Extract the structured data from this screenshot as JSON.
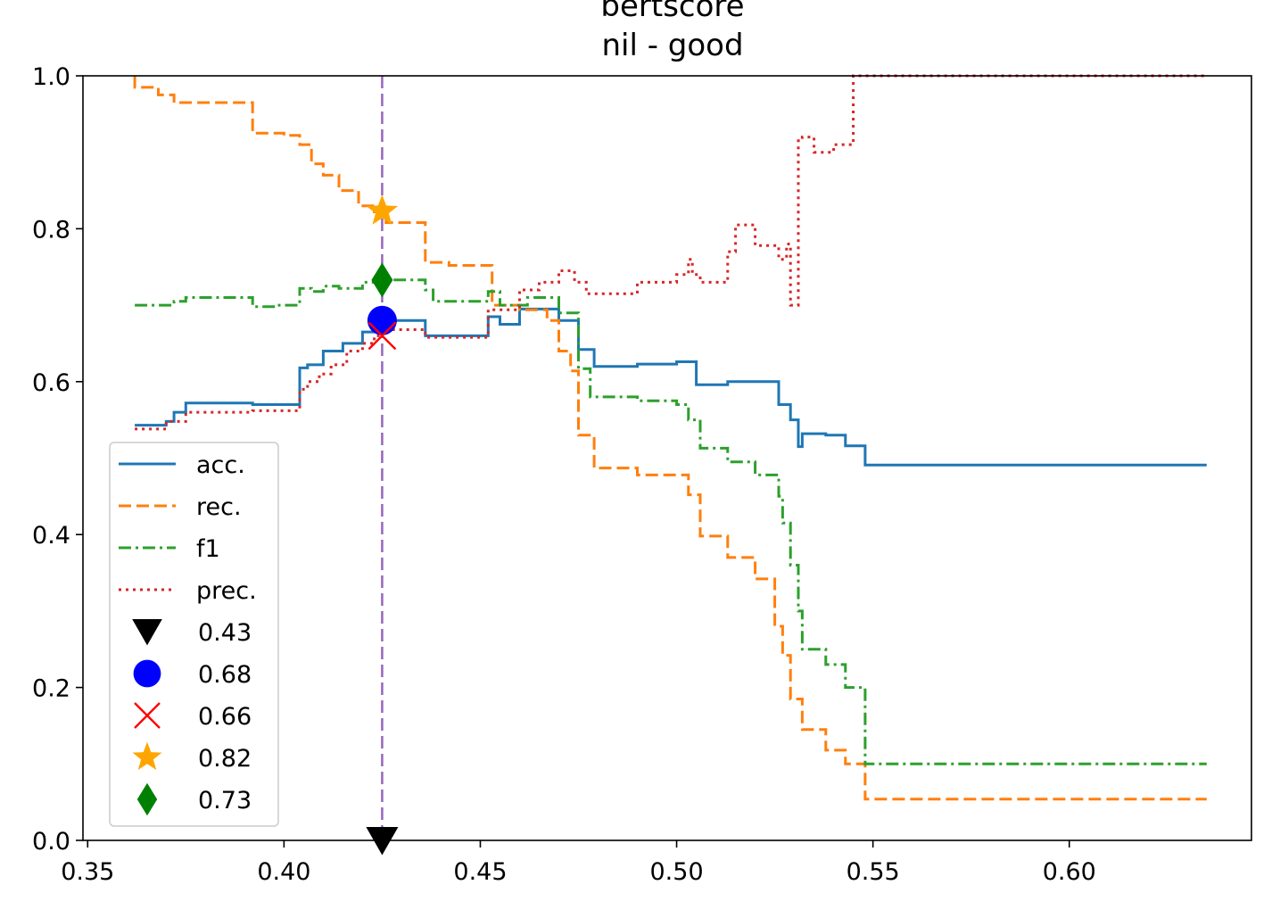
{
  "chart_data": {
    "type": "line",
    "title_line1": "bertscore",
    "title_line2": "nil  -  good",
    "xlabel": "",
    "ylabel": "",
    "xlim": [
      0.3488,
      0.6464
    ],
    "ylim": [
      0.0,
      1.0
    ],
    "xticks": [
      "0.35",
      "0.40",
      "0.45",
      "0.50",
      "0.55",
      "0.60"
    ],
    "xtick_values": [
      0.35,
      0.4,
      0.45,
      0.5,
      0.55,
      0.6
    ],
    "yticks": [
      "0.0",
      "0.2",
      "0.4",
      "0.6",
      "0.8",
      "1.0"
    ],
    "ytick_values": [
      0.0,
      0.2,
      0.4,
      0.6,
      0.8,
      1.0
    ],
    "grid": false,
    "legend_position": "lower-left",
    "threshold_line": {
      "x": 0.425,
      "color": "#9467bd"
    },
    "series": [
      {
        "name": "acc.",
        "color": "#1f77b4",
        "dash": "solid",
        "x": [
          0.362,
          0.37,
          0.37,
          0.372,
          0.372,
          0.375,
          0.375,
          0.392,
          0.392,
          0.404,
          0.404,
          0.406,
          0.406,
          0.41,
          0.41,
          0.415,
          0.415,
          0.42,
          0.42,
          0.425,
          0.425,
          0.436,
          0.436,
          0.452,
          0.452,
          0.455,
          0.455,
          0.46,
          0.46,
          0.47,
          0.47,
          0.475,
          0.475,
          0.479,
          0.479,
          0.49,
          0.49,
          0.5,
          0.5,
          0.505,
          0.505,
          0.513,
          0.513,
          0.526,
          0.526,
          0.529,
          0.529,
          0.531,
          0.531,
          0.532,
          0.532,
          0.538,
          0.538,
          0.543,
          0.543,
          0.548,
          0.548,
          0.635
        ],
        "y": [
          0.543,
          0.543,
          0.548,
          0.548,
          0.56,
          0.56,
          0.572,
          0.572,
          0.57,
          0.57,
          0.618,
          0.618,
          0.622,
          0.622,
          0.64,
          0.64,
          0.65,
          0.65,
          0.665,
          0.665,
          0.68,
          0.68,
          0.66,
          0.66,
          0.685,
          0.685,
          0.675,
          0.675,
          0.695,
          0.695,
          0.68,
          0.68,
          0.642,
          0.642,
          0.62,
          0.62,
          0.623,
          0.623,
          0.626,
          0.626,
          0.596,
          0.596,
          0.6,
          0.6,
          0.57,
          0.57,
          0.55,
          0.55,
          0.515,
          0.515,
          0.532,
          0.532,
          0.53,
          0.53,
          0.516,
          0.516,
          0.491,
          0.491
        ]
      },
      {
        "name": "rec.",
        "color": "#ff7f0e",
        "dash": "dashed",
        "x": [
          0.362,
          0.362,
          0.368,
          0.368,
          0.372,
          0.372,
          0.392,
          0.392,
          0.4,
          0.4,
          0.404,
          0.404,
          0.407,
          0.407,
          0.41,
          0.41,
          0.414,
          0.414,
          0.419,
          0.419,
          0.423,
          0.423,
          0.426,
          0.426,
          0.436,
          0.436,
          0.442,
          0.442,
          0.453,
          0.453,
          0.46,
          0.46,
          0.467,
          0.467,
          0.47,
          0.47,
          0.473,
          0.473,
          0.475,
          0.475,
          0.479,
          0.479,
          0.49,
          0.49,
          0.503,
          0.503,
          0.506,
          0.506,
          0.513,
          0.513,
          0.52,
          0.52,
          0.525,
          0.525,
          0.527,
          0.527,
          0.529,
          0.529,
          0.532,
          0.532,
          0.538,
          0.538,
          0.543,
          0.543,
          0.548,
          0.548,
          0.635
        ],
        "y": [
          1.0,
          0.985,
          0.985,
          0.975,
          0.975,
          0.965,
          0.965,
          0.925,
          0.925,
          0.922,
          0.922,
          0.91,
          0.91,
          0.885,
          0.885,
          0.87,
          0.87,
          0.85,
          0.85,
          0.83,
          0.83,
          0.822,
          0.822,
          0.808,
          0.808,
          0.756,
          0.756,
          0.752,
          0.752,
          0.7,
          0.7,
          0.694,
          0.694,
          0.68,
          0.68,
          0.64,
          0.64,
          0.614,
          0.614,
          0.53,
          0.53,
          0.487,
          0.487,
          0.478,
          0.478,
          0.452,
          0.452,
          0.398,
          0.398,
          0.37,
          0.37,
          0.342,
          0.342,
          0.28,
          0.28,
          0.242,
          0.242,
          0.185,
          0.185,
          0.145,
          0.145,
          0.118,
          0.118,
          0.1,
          0.1,
          0.054,
          0.054
        ]
      },
      {
        "name": "f1",
        "color": "#2ca02c",
        "dash": "dashdot",
        "x": [
          0.362,
          0.372,
          0.372,
          0.375,
          0.375,
          0.392,
          0.392,
          0.398,
          0.398,
          0.404,
          0.404,
          0.407,
          0.407,
          0.41,
          0.41,
          0.414,
          0.414,
          0.42,
          0.42,
          0.425,
          0.425,
          0.436,
          0.436,
          0.438,
          0.438,
          0.452,
          0.452,
          0.455,
          0.455,
          0.462,
          0.462,
          0.47,
          0.47,
          0.475,
          0.475,
          0.478,
          0.478,
          0.49,
          0.49,
          0.5,
          0.5,
          0.503,
          0.503,
          0.506,
          0.506,
          0.513,
          0.513,
          0.52,
          0.52,
          0.526,
          0.526,
          0.527,
          0.527,
          0.529,
          0.529,
          0.531,
          0.531,
          0.532,
          0.532,
          0.538,
          0.538,
          0.543,
          0.543,
          0.548,
          0.548,
          0.635
        ],
        "y": [
          0.7,
          0.7,
          0.705,
          0.705,
          0.71,
          0.71,
          0.698,
          0.698,
          0.7,
          0.7,
          0.722,
          0.722,
          0.718,
          0.718,
          0.725,
          0.725,
          0.722,
          0.722,
          0.73,
          0.73,
          0.733,
          0.733,
          0.72,
          0.72,
          0.705,
          0.705,
          0.718,
          0.718,
          0.7,
          0.7,
          0.71,
          0.71,
          0.69,
          0.69,
          0.617,
          0.617,
          0.58,
          0.58,
          0.575,
          0.575,
          0.57,
          0.57,
          0.55,
          0.55,
          0.513,
          0.513,
          0.495,
          0.495,
          0.478,
          0.478,
          0.45,
          0.45,
          0.415,
          0.415,
          0.36,
          0.36,
          0.3,
          0.3,
          0.25,
          0.25,
          0.23,
          0.23,
          0.2,
          0.2,
          0.1,
          0.1
        ]
      },
      {
        "name": "prec.",
        "color": "#d62728",
        "dash": "dotted",
        "x": [
          0.362,
          0.37,
          0.37,
          0.375,
          0.375,
          0.392,
          0.392,
          0.404,
          0.404,
          0.406,
          0.406,
          0.409,
          0.409,
          0.412,
          0.412,
          0.416,
          0.416,
          0.42,
          0.42,
          0.423,
          0.423,
          0.425,
          0.425,
          0.436,
          0.436,
          0.452,
          0.452,
          0.46,
          0.46,
          0.465,
          0.465,
          0.47,
          0.47,
          0.474,
          0.474,
          0.477,
          0.477,
          0.49,
          0.49,
          0.5,
          0.5,
          0.503,
          0.503,
          0.504,
          0.504,
          0.506,
          0.506,
          0.513,
          0.513,
          0.515,
          0.515,
          0.52,
          0.52,
          0.526,
          0.526,
          0.528,
          0.528,
          0.529,
          0.529,
          0.531,
          0.531,
          0.532,
          0.532,
          0.535,
          0.535,
          0.54,
          0.54,
          0.545,
          0.545,
          0.548,
          0.548,
          0.635
        ],
        "y": [
          0.538,
          0.538,
          0.548,
          0.548,
          0.56,
          0.56,
          0.562,
          0.562,
          0.59,
          0.59,
          0.6,
          0.6,
          0.61,
          0.61,
          0.622,
          0.622,
          0.64,
          0.64,
          0.65,
          0.65,
          0.66,
          0.66,
          0.668,
          0.668,
          0.658,
          0.658,
          0.694,
          0.694,
          0.72,
          0.72,
          0.73,
          0.73,
          0.745,
          0.745,
          0.73,
          0.73,
          0.715,
          0.715,
          0.73,
          0.73,
          0.74,
          0.74,
          0.76,
          0.76,
          0.74,
          0.74,
          0.73,
          0.73,
          0.77,
          0.77,
          0.805,
          0.805,
          0.778,
          0.778,
          0.76,
          0.76,
          0.78,
          0.78,
          0.7,
          0.7,
          0.915,
          0.915,
          0.92,
          0.92,
          0.9,
          0.9,
          0.91,
          0.91,
          1.0,
          1.0,
          1.0,
          1.0
        ]
      }
    ],
    "markers": [
      {
        "label": "0.43",
        "shape": "triangle-down",
        "color": "#000000",
        "x": 0.425,
        "y": 0.0
      },
      {
        "label": "0.68",
        "shape": "circle",
        "color": "#0000ff",
        "x": 0.425,
        "y": 0.68
      },
      {
        "label": "0.66",
        "shape": "x",
        "color": "#ff0000",
        "x": 0.425,
        "y": 0.66
      },
      {
        "label": "0.82",
        "shape": "star",
        "color": "#ffa500",
        "x": 0.425,
        "y": 0.823
      },
      {
        "label": "0.73",
        "shape": "diamond",
        "color": "#008000",
        "x": 0.425,
        "y": 0.733
      }
    ]
  }
}
